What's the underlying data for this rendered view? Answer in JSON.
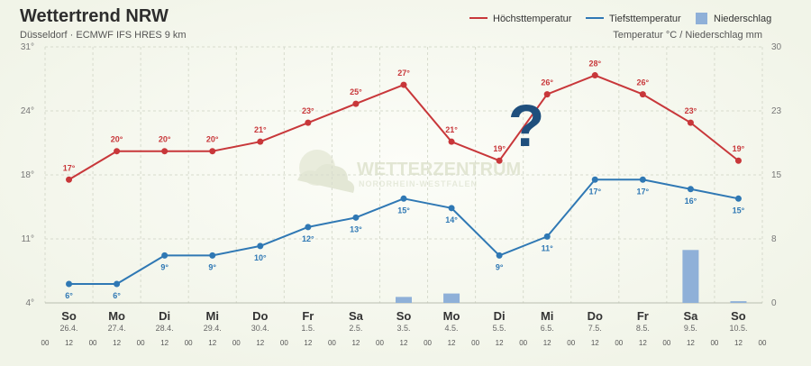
{
  "header": {
    "title": "Wettertrend NRW",
    "subtitle": "Düsseldorf · ECMWF IFS HRES 9 km",
    "units": "Temperatur °C / Niederschlag mm"
  },
  "watermark": {
    "title": "WETTERZENTRUM",
    "subtitle": "NORDRHEIN-WESTFALEN"
  },
  "annotation": "?",
  "colors": {
    "max": "#c8373a",
    "min": "#2f78b4",
    "precip": "#8fb0d8"
  },
  "chart_data": {
    "type": "line",
    "categories": [
      "So",
      "Mo",
      "Di",
      "Mi",
      "Do",
      "Fr",
      "Sa",
      "So",
      "Mo",
      "Di",
      "Mi",
      "Do",
      "Fr",
      "Sa",
      "So"
    ],
    "dates": [
      "26.4.",
      "27.4.",
      "28.4.",
      "29.4.",
      "30.4.",
      "1.5.",
      "2.5.",
      "3.5.",
      "4.5.",
      "5.5.",
      "6.5.",
      "7.5.",
      "8.5.",
      "9.5.",
      "10.5."
    ],
    "hours": [
      "00",
      "12"
    ],
    "series": [
      {
        "name": "Höchsttemperatur",
        "type": "line",
        "color": "#c8373a",
        "values": [
          17,
          20,
          20,
          20,
          21,
          23,
          25,
          27,
          21,
          19,
          26,
          28,
          26,
          23,
          19
        ]
      },
      {
        "name": "Tiefsttemperatur",
        "type": "line",
        "color": "#2f78b4",
        "values": [
          6,
          6,
          9,
          9,
          10,
          12,
          13,
          15,
          14,
          9,
          11,
          17,
          17,
          16,
          15
        ]
      },
      {
        "name": "Niederschlag",
        "type": "bar",
        "color": "#8fb0d8",
        "values": [
          0,
          0,
          0,
          0,
          0,
          0,
          0,
          0.7,
          1.1,
          0,
          0,
          0,
          0,
          6.2,
          0.2
        ]
      }
    ],
    "y_left": {
      "ticks": [
        "4°",
        "11°",
        "18°",
        "24°",
        "31°"
      ],
      "range": [
        4,
        31
      ]
    },
    "y_right": {
      "ticks": [
        "0",
        "8",
        "15",
        "23",
        "30"
      ],
      "range": [
        0,
        30
      ]
    },
    "grid": true,
    "legend_position": "top-right"
  }
}
